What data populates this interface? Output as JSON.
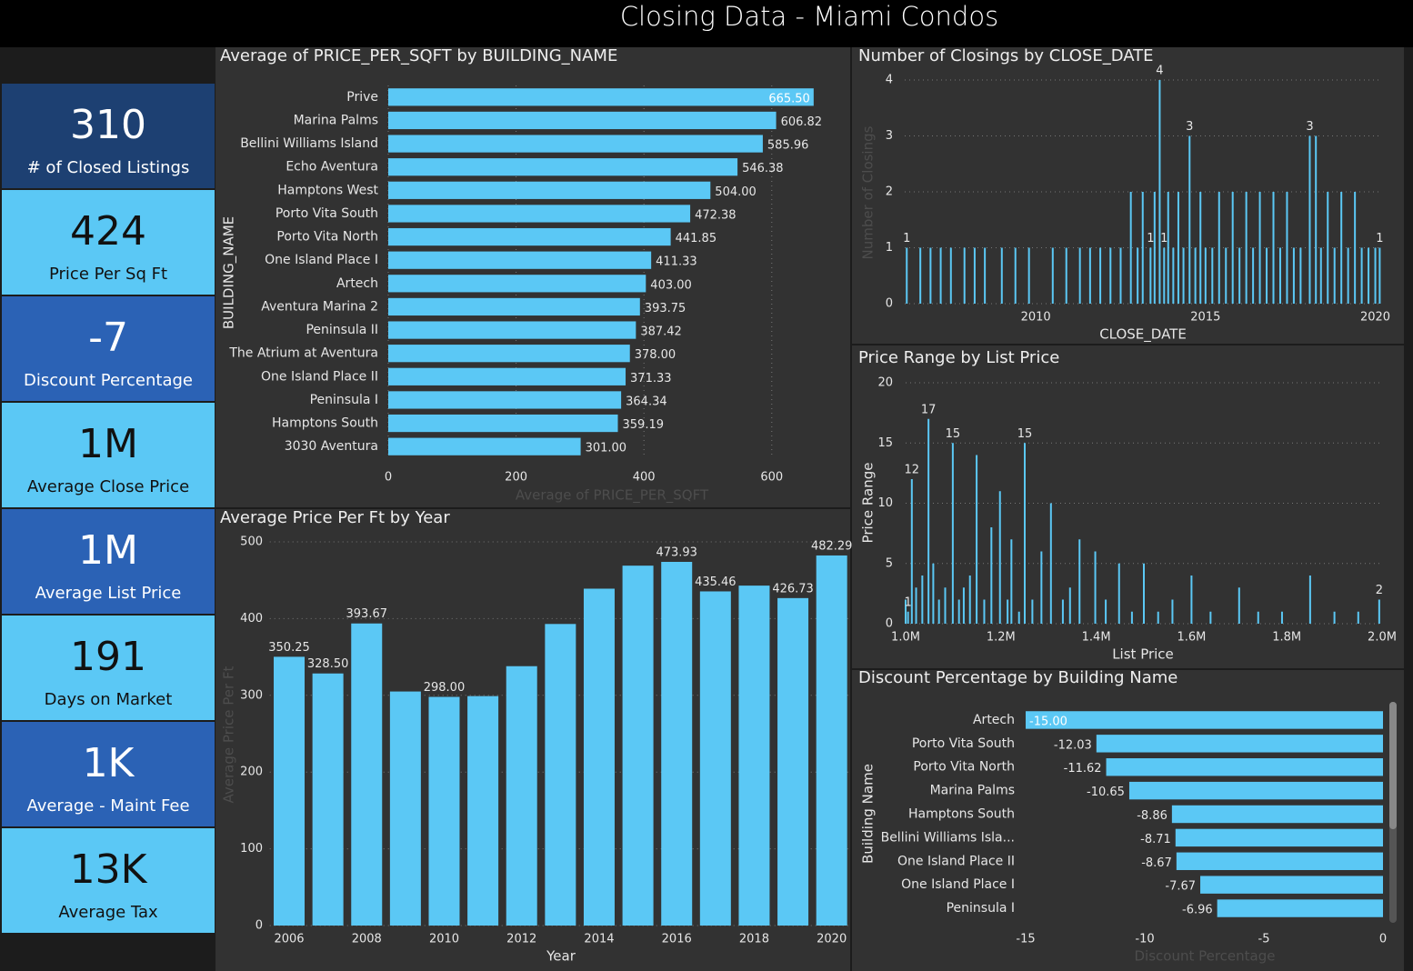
{
  "title": "Closing Data - Miami Condos",
  "kpis": [
    {
      "value": "310",
      "label": "# of Closed Listings"
    },
    {
      "value": "424",
      "label": "Price Per Sq Ft"
    },
    {
      "value": "-7",
      "label": "Discount Percentage"
    },
    {
      "value": "1M",
      "label": "Average Close Price"
    },
    {
      "value": "1M",
      "label": "Average List Price"
    },
    {
      "value": "191",
      "label": "Days on Market"
    },
    {
      "value": "1K",
      "label": "Average - Maint Fee"
    },
    {
      "value": "13K",
      "label": "Average Tax"
    }
  ],
  "chart_data": [
    {
      "type": "bar",
      "orientation": "horizontal",
      "title": "Average of PRICE_PER_SQFT by BUILDING_NAME",
      "color": "#5bc8f5",
      "grid": true,
      "categories": [
        "Prive",
        "Marina Palms",
        "Bellini Williams Island",
        "Echo Aventura",
        "Hamptons West",
        "Porto Vita South",
        "Porto Vita North",
        "One Island Place I",
        "Artech",
        "Aventura Marina 2",
        "Peninsula II",
        "The Atrium at Aventura",
        "One Island Place II",
        "Peninsula I",
        "Hamptons South",
        "3030 Aventura"
      ],
      "values": [
        665.5,
        606.82,
        585.96,
        546.38,
        504,
        472.38,
        441.85,
        411.33,
        403,
        393.75,
        387.42,
        378,
        371.33,
        364.34,
        359.19,
        301
      ],
      "value_labels": [
        "665.50",
        "606.82",
        "585.96",
        "546.38",
        "504.00",
        "472.38",
        "441.85",
        "411.33",
        "403.00",
        "393.75",
        "387.42",
        "378.00",
        "371.33",
        "364.34",
        "359.19",
        "301.00"
      ],
      "xlim": [
        0,
        670
      ],
      "xticks": [
        0,
        200,
        400,
        600
      ],
      "xlabel": "Average of PRICE_PER_SQFT",
      "ylabel": "BUILDING_NAME"
    },
    {
      "type": "bar",
      "title": "Number of Closings by CLOSE_DATE",
      "color": "#5bc8f5",
      "grid": true,
      "x": [
        2006.2,
        2006.6,
        2006.9,
        2007.2,
        2007.5,
        2007.9,
        2008.2,
        2008.5,
        2009.0,
        2009.4,
        2009.8,
        2010.5,
        2010.9,
        2011.3,
        2011.6,
        2011.9,
        2012.2,
        2012.5,
        2012.8,
        2013.0,
        2013.15,
        2013.38,
        2013.5,
        2013.65,
        2013.78,
        2013.9,
        2014.05,
        2014.2,
        2014.35,
        2014.53,
        2014.7,
        2014.85,
        2015.0,
        2015.2,
        2015.4,
        2015.6,
        2015.8,
        2016.0,
        2016.2,
        2016.4,
        2016.6,
        2016.8,
        2017.0,
        2017.2,
        2017.4,
        2017.6,
        2017.8,
        2018.07,
        2018.25,
        2018.4,
        2018.6,
        2018.8,
        2019.0,
        2019.2,
        2019.4,
        2019.6,
        2019.8,
        2020.0,
        2020.13
      ],
      "values": [
        1,
        1,
        1,
        1,
        1,
        1,
        1,
        1,
        1,
        1,
        1,
        1,
        1,
        1,
        1,
        1,
        1,
        1,
        2,
        1,
        2,
        1,
        2,
        4,
        1,
        2,
        1,
        2,
        1,
        3,
        1,
        2,
        1,
        1,
        2,
        1,
        2,
        1,
        2,
        1,
        2,
        1,
        2,
        1,
        2,
        1,
        1,
        3,
        3,
        1,
        2,
        1,
        2,
        1,
        2,
        1,
        1,
        1,
        1
      ],
      "value_labels": [
        "1",
        null,
        null,
        null,
        null,
        null,
        null,
        null,
        null,
        null,
        null,
        null,
        null,
        null,
        null,
        null,
        null,
        null,
        null,
        null,
        null,
        "1",
        null,
        "4",
        "1",
        null,
        null,
        null,
        null,
        "3",
        null,
        null,
        null,
        null,
        null,
        null,
        null,
        null,
        null,
        null,
        null,
        null,
        null,
        null,
        null,
        null,
        null,
        "3",
        null,
        null,
        null,
        null,
        null,
        null,
        null,
        null,
        null,
        null,
        "1"
      ],
      "xlim": [
        2006.14,
        2020.2
      ],
      "xticks": [
        2010,
        2015,
        2020
      ],
      "ylim": [
        0,
        4
      ],
      "yticks": [
        0,
        1,
        2,
        3,
        4
      ],
      "xlabel": "CLOSE_DATE",
      "ylabel": "Number of Closings"
    },
    {
      "type": "bar",
      "title": "Price Range by List Price",
      "color": "#5bc8f5",
      "grid": true,
      "x": [
        1000000,
        1005000,
        1013000,
        1022000,
        1035000,
        1048000,
        1058000,
        1070000,
        1083000,
        1099000,
        1112000,
        1122000,
        1135000,
        1149000,
        1165000,
        1180000,
        1198000,
        1214000,
        1222000,
        1238000,
        1250000,
        1266000,
        1285000,
        1305000,
        1330000,
        1345000,
        1365000,
        1398000,
        1420000,
        1448000,
        1475000,
        1500000,
        1530000,
        1560000,
        1600000,
        1640000,
        1700000,
        1740000,
        1790000,
        1849000,
        1900000,
        1950000,
        1994000
      ],
      "values": [
        2,
        1,
        12,
        3,
        4,
        17,
        5,
        2,
        3,
        15,
        2,
        3,
        4,
        14,
        2,
        8,
        11,
        2,
        7,
        1,
        15,
        2,
        6,
        10,
        2,
        3,
        7,
        6,
        2,
        5,
        1,
        5,
        1,
        2,
        4,
        1,
        3,
        1,
        1,
        4,
        1,
        1,
        2
      ],
      "value_labels": [
        null,
        "1",
        "12",
        null,
        null,
        "17",
        null,
        null,
        null,
        "15",
        null,
        null,
        null,
        null,
        null,
        null,
        null,
        null,
        null,
        null,
        "15",
        null,
        null,
        null,
        null,
        null,
        null,
        null,
        null,
        null,
        null,
        null,
        null,
        null,
        null,
        null,
        null,
        null,
        null,
        null,
        null,
        null,
        "2"
      ],
      "xlim": [
        1000000,
        2000000
      ],
      "xticks": [
        {
          "value": 1000000,
          "label": "1.0M"
        },
        {
          "value": 1200000,
          "label": "1.2M"
        },
        {
          "value": 1400000,
          "label": "1.4M"
        },
        {
          "value": 1600000,
          "label": "1.6M"
        },
        {
          "value": 1800000,
          "label": "1.8M"
        },
        {
          "value": 2000000,
          "label": "2.0M"
        }
      ],
      "ylim": [
        0,
        20
      ],
      "yticks": [
        0,
        5,
        10,
        15,
        20
      ],
      "xlabel": "List Price",
      "ylabel": "Price Range"
    },
    {
      "type": "bar",
      "title": "Average Price Per Ft by Year",
      "color": "#5bc8f5",
      "grid": true,
      "x": [
        2006,
        2007,
        2008,
        2009,
        2010,
        2011,
        2012,
        2013,
        2014,
        2015,
        2016,
        2017,
        2018,
        2019,
        2020
      ],
      "values": [
        350.25,
        328.5,
        393.67,
        305,
        298,
        299,
        338,
        393,
        439,
        469,
        473.93,
        435.46,
        443,
        426.73,
        482.29
      ],
      "value_labels": [
        "350.25",
        "328.50",
        "393.67",
        null,
        "298.00",
        null,
        null,
        null,
        null,
        null,
        "473.93",
        "435.46",
        null,
        "426.73",
        "482.29"
      ],
      "xlim": [
        2005.5,
        2020.5
      ],
      "xticks": [
        2006,
        2008,
        2010,
        2012,
        2014,
        2016,
        2018,
        2020
      ],
      "ylim": [
        0,
        500
      ],
      "yticks": [
        0,
        100,
        200,
        300,
        400,
        500
      ],
      "xlabel": "Year",
      "ylabel": "Average Price Per Ft"
    },
    {
      "type": "bar",
      "orientation": "horizontal",
      "title": "Discount Percentage by Building Name",
      "color": "#5bc8f5",
      "grid": false,
      "categories": [
        "Artech",
        "Porto Vita South",
        "Porto Vita North",
        "Marina Palms",
        "Hamptons South",
        "Bellini Williams Isla...",
        "One Island Place II",
        "One Island Place I",
        "Peninsula I"
      ],
      "values": [
        -15,
        -12.03,
        -11.62,
        -10.65,
        -8.86,
        -8.71,
        -8.67,
        -7.67,
        -6.96
      ],
      "value_labels": [
        "-15.00",
        "-12.03",
        "-11.62",
        "-10.65",
        "-8.86",
        "-8.71",
        "-8.67",
        "-7.67",
        "-6.96"
      ],
      "xlim": [
        -15,
        0
      ],
      "xticks": [
        -15,
        -10,
        -5,
        0
      ],
      "xlabel": "Discount Percentage",
      "ylabel": "Building Name"
    }
  ]
}
